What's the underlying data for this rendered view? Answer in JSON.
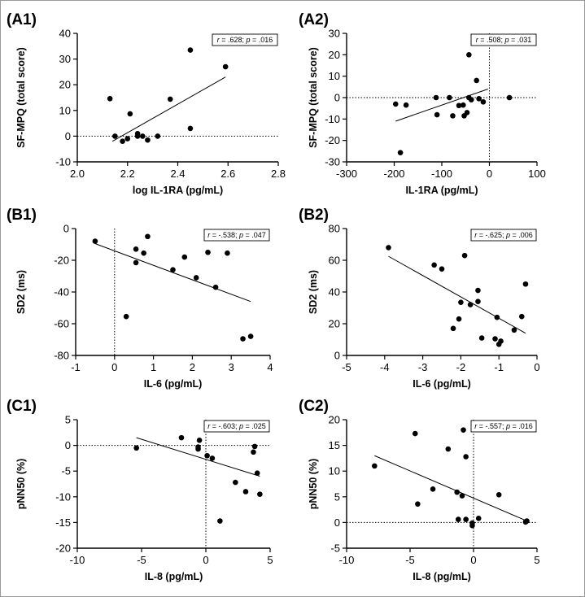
{
  "chart_data": [
    {
      "panel_label": "(A1)",
      "type": "scatter",
      "xlabel": "log IL-1RA (pg/mL)",
      "ylabel": "SF-MPQ (total score)",
      "xlim": [
        2.0,
        2.8
      ],
      "ylim": [
        -10,
        40
      ],
      "xticks": [
        "2.0",
        "2.2",
        "2.4",
        "2.6",
        "2.8"
      ],
      "yticks": [
        "-10",
        "0",
        "10",
        "20",
        "30",
        "40"
      ],
      "stat_r": ".628",
      "stat_p": ".016",
      "points": [
        [
          2.13,
          14.6
        ],
        [
          2.15,
          0
        ],
        [
          2.18,
          -2
        ],
        [
          2.2,
          -1
        ],
        [
          2.21,
          8.7
        ],
        [
          2.24,
          1
        ],
        [
          2.24,
          0
        ],
        [
          2.26,
          0
        ],
        [
          2.28,
          -1.5
        ],
        [
          2.32,
          0
        ],
        [
          2.37,
          14.4
        ],
        [
          2.45,
          3
        ],
        [
          2.45,
          33.5
        ],
        [
          2.59,
          27
        ]
      ],
      "fit": [
        [
          2.14,
          -2
        ],
        [
          2.59,
          23
        ]
      ],
      "ref_y": 0,
      "ref_x": null
    },
    {
      "panel_label": "(A2)",
      "type": "scatter",
      "xlabel": "IL-1RA (pg/mL)",
      "ylabel": "SF-MPQ (total score)",
      "xlim": [
        -300,
        100
      ],
      "ylim": [
        -30,
        30
      ],
      "xticks": [
        "-300",
        "-200",
        "-100",
        "0",
        "100"
      ],
      "yticks": [
        "-30",
        "-20",
        "-10",
        "0",
        "10",
        "20",
        "30"
      ],
      "stat_r": ".508",
      "stat_p": ".031",
      "points": [
        [
          -197,
          -3
        ],
        [
          -187,
          -25.7
        ],
        [
          -175,
          -3.5
        ],
        [
          -112,
          0
        ],
        [
          -110,
          -8
        ],
        [
          -84,
          0
        ],
        [
          -77,
          -8.5
        ],
        [
          -64,
          -3.7
        ],
        [
          -55,
          -3.5
        ],
        [
          -53,
          -8.5
        ],
        [
          -47,
          -7
        ],
        [
          -43,
          0
        ],
        [
          -43,
          20
        ],
        [
          -38,
          -1
        ],
        [
          -27,
          8
        ],
        [
          -22,
          -0.5
        ],
        [
          -13,
          -2
        ],
        [
          42,
          0
        ]
      ],
      "fit": [
        [
          -197,
          -11
        ],
        [
          -3,
          4
        ]
      ],
      "ref_y": 0,
      "ref_x": 0
    },
    {
      "panel_label": "(B1)",
      "type": "scatter",
      "xlabel": "IL-6 (pg/mL)",
      "ylabel": "SD2 (ms)",
      "xlim": [
        -1,
        4
      ],
      "ylim": [
        -80,
        0
      ],
      "xticks": [
        "-1",
        "0",
        "1",
        "2",
        "3",
        "4"
      ],
      "yticks": [
        "-80",
        "-60",
        "-40",
        "-20",
        "0"
      ],
      "stat_r": "-.538",
      "stat_p": ".047",
      "points": [
        [
          -0.5,
          -8
        ],
        [
          0.3,
          -55.5
        ],
        [
          0.55,
          -13
        ],
        [
          0.55,
          -21.5
        ],
        [
          0.75,
          -15.5
        ],
        [
          0.85,
          -5
        ],
        [
          1.5,
          -26
        ],
        [
          1.8,
          -18
        ],
        [
          2.1,
          -31
        ],
        [
          2.4,
          -15
        ],
        [
          2.6,
          -37
        ],
        [
          2.9,
          -15.5
        ],
        [
          3.3,
          -69.5
        ],
        [
          3.5,
          -68
        ]
      ],
      "fit": [
        [
          -0.5,
          -9.5
        ],
        [
          3.5,
          -46
        ]
      ],
      "ref_y": null,
      "ref_x": 0
    },
    {
      "panel_label": "(B2)",
      "type": "scatter",
      "xlabel": "IL-6 (pg/mL)",
      "ylabel": "SD2 (ms)",
      "xlim": [
        -5,
        0
      ],
      "ylim": [
        0,
        80
      ],
      "xticks": [
        "-5",
        "-4",
        "-3",
        "-2",
        "-1",
        "0"
      ],
      "yticks": [
        "0",
        "20",
        "40",
        "60",
        "80"
      ],
      "stat_r": "-.625",
      "stat_p": ".006",
      "points": [
        [
          -3.9,
          68
        ],
        [
          -2.7,
          57
        ],
        [
          -2.5,
          54.5
        ],
        [
          -2.2,
          17
        ],
        [
          -2.05,
          23
        ],
        [
          -2.0,
          33.5
        ],
        [
          -1.9,
          63
        ],
        [
          -1.75,
          32
        ],
        [
          -1.55,
          41
        ],
        [
          -1.55,
          34
        ],
        [
          -1.45,
          11
        ],
        [
          -1.1,
          10.5
        ],
        [
          -1.05,
          24
        ],
        [
          -1.0,
          7
        ],
        [
          -0.95,
          9
        ],
        [
          -0.6,
          16
        ],
        [
          -0.4,
          24.5
        ],
        [
          -0.3,
          45
        ]
      ],
      "fit": [
        [
          -3.9,
          62.5
        ],
        [
          -0.3,
          14
        ]
      ],
      "ref_y": null,
      "ref_x": null
    },
    {
      "panel_label": "(C1)",
      "type": "scatter",
      "xlabel": "IL-8 (pg/mL)",
      "ylabel": "pNN50 (%)",
      "xlim": [
        -10,
        5
      ],
      "ylim": [
        -20,
        5
      ],
      "xticks": [
        "-10",
        "-5",
        "0",
        "5"
      ],
      "yticks": [
        "-20",
        "-15",
        "-10",
        "-5",
        "0",
        "5"
      ],
      "stat_r": "-.603",
      "stat_p": ".025",
      "points": [
        [
          -5.4,
          -0.5
        ],
        [
          -1.9,
          1.5
        ],
        [
          -0.6,
          -0.3
        ],
        [
          -0.6,
          -0.7
        ],
        [
          -0.5,
          1.0
        ],
        [
          0.1,
          -2.0
        ],
        [
          0.5,
          -2.5
        ],
        [
          1.1,
          -14.7
        ],
        [
          2.3,
          -7.2
        ],
        [
          3.1,
          -9
        ],
        [
          3.7,
          -1.3
        ],
        [
          3.8,
          -0.2
        ],
        [
          4.0,
          -5.4
        ],
        [
          4.2,
          -9.5
        ]
      ],
      "fit": [
        [
          -5.4,
          1.5
        ],
        [
          4.2,
          -6
        ]
      ],
      "ref_y": 0,
      "ref_x": 0
    },
    {
      "panel_label": "(C2)",
      "type": "scatter",
      "xlabel": "IL-8 (pg/mL)",
      "ylabel": "pNN50 (%)",
      "xlim": [
        -10,
        5
      ],
      "ylim": [
        -5,
        20
      ],
      "xticks": [
        "-10",
        "-5",
        "0",
        "5"
      ],
      "yticks": [
        "-5",
        "0",
        "5",
        "10",
        "15",
        "20"
      ],
      "stat_r": "-.557",
      "stat_p": ".016",
      "points": [
        [
          -7.8,
          11
        ],
        [
          -4.6,
          17.3
        ],
        [
          -4.4,
          3.6
        ],
        [
          -3.2,
          6.5
        ],
        [
          -2.0,
          14.3
        ],
        [
          -1.3,
          5.9
        ],
        [
          -1.2,
          0.6
        ],
        [
          -0.9,
          5.2
        ],
        [
          -0.8,
          18
        ],
        [
          -0.6,
          12.8
        ],
        [
          -0.6,
          0.6
        ],
        [
          -0.1,
          -0.1
        ],
        [
          -0.1,
          -0.6
        ],
        [
          0.4,
          0.8
        ],
        [
          2.0,
          5.4
        ],
        [
          4.1,
          0.1
        ],
        [
          4.2,
          0.3
        ]
      ],
      "fit": [
        [
          -7.8,
          13
        ],
        [
          4.2,
          0.3
        ]
      ],
      "ref_y": 0,
      "ref_x": 0
    }
  ]
}
